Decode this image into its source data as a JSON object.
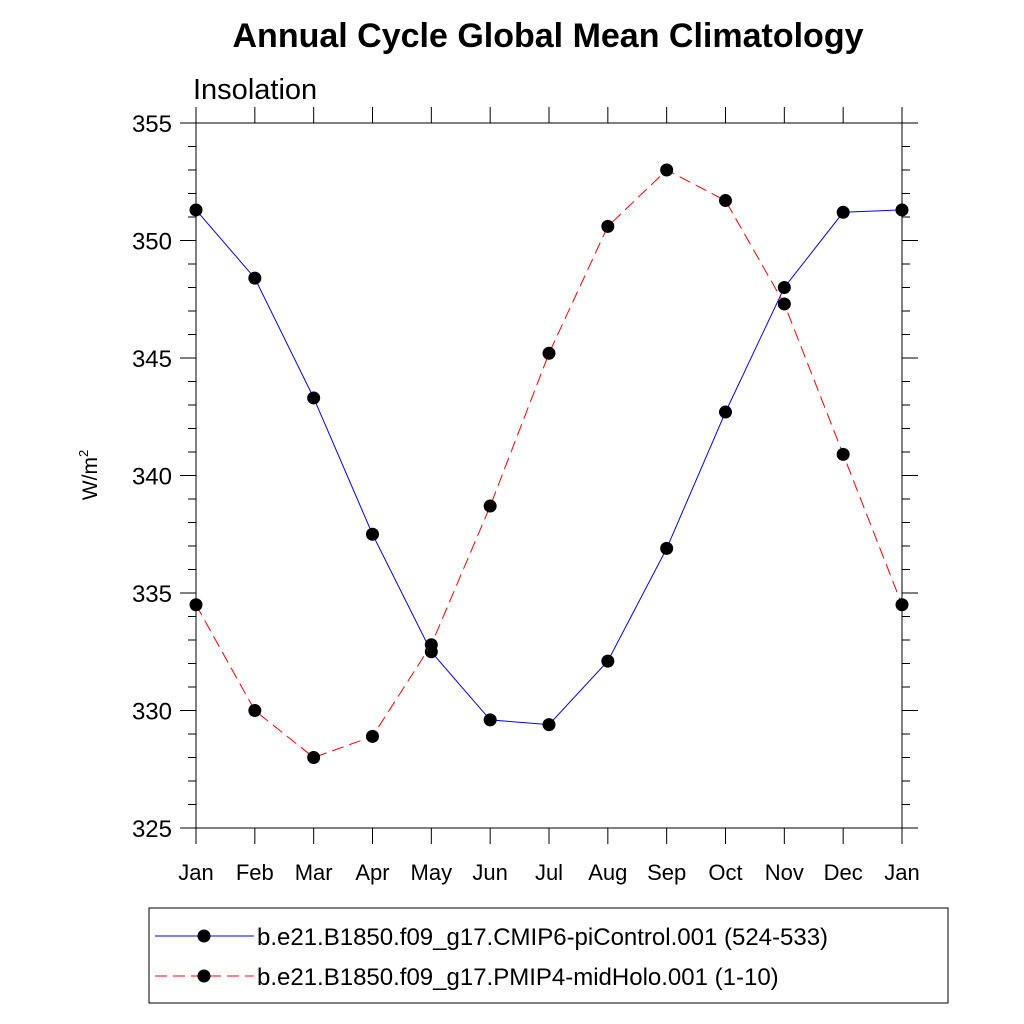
{
  "chart_data": {
    "type": "line",
    "title": "Annual Cycle Global Mean Climatology",
    "subtitle": "Insolation",
    "xlabel": "",
    "ylabel": "W/m",
    "ylabel_sup": "2",
    "categories": [
      "Jan",
      "Feb",
      "Mar",
      "Apr",
      "May",
      "Jun",
      "Jul",
      "Aug",
      "Sep",
      "Oct",
      "Nov",
      "Dec",
      "Jan"
    ],
    "ylim": [
      325,
      355
    ],
    "yticks": [
      325,
      330,
      335,
      340,
      345,
      350,
      355
    ],
    "grid": false,
    "legend_position": "bottom",
    "series": [
      {
        "name": "b.e21.B1850.f09_g17.CMIP6-piControl.001 (524-533)",
        "color": "#0000ff",
        "dash": "solid",
        "values": [
          351.3,
          348.4,
          343.3,
          337.5,
          332.5,
          329.6,
          329.4,
          332.1,
          336.9,
          342.7,
          348.0,
          351.2,
          351.3
        ]
      },
      {
        "name": "b.e21.B1850.f09_g17.PMIP4-midHolo.001 (1-10)",
        "color": "#ff0000",
        "dash": "dashed",
        "values": [
          334.5,
          330.0,
          328.0,
          328.9,
          332.8,
          338.7,
          345.2,
          350.6,
          353.0,
          351.7,
          347.3,
          340.9,
          334.5
        ]
      }
    ]
  }
}
